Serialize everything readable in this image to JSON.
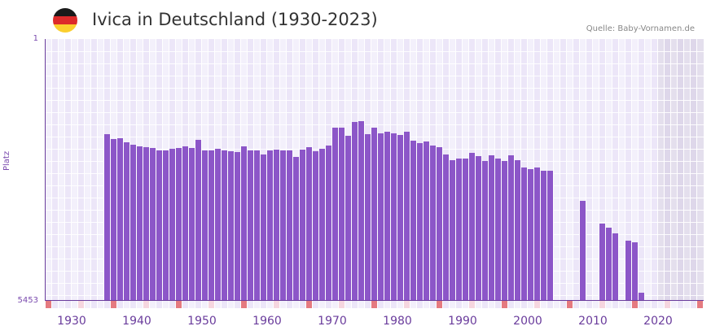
{
  "header": {
    "title": "Ivica in Deutschland (1930-2023)",
    "source": "Quelle: Baby-Vornamen.de",
    "flag_colors": [
      "#1a1a1a",
      "#dd2a2a",
      "#fbcf2e"
    ]
  },
  "axes": {
    "y_label": "Platz",
    "y_top_tick": "1",
    "y_bottom_tick": "5453",
    "x_ticks": [
      "1930",
      "1940",
      "1950",
      "1960",
      "1970",
      "1980",
      "1990",
      "2000",
      "2010",
      "2020"
    ]
  },
  "colors": {
    "bar": "#8c56c8",
    "axis": "#6a3c9c",
    "plot_bg": "#f1edfa",
    "decade_marker": "#e57a80",
    "half_decade_marker": "#f6d6df"
  },
  "chart_data": {
    "type": "bar",
    "title": "Ivica in Deutschland (1930-2023)",
    "xlabel": "",
    "ylabel": "Platz",
    "y_inverted": true,
    "ylim": [
      1,
      5453
    ],
    "xlim": [
      1928,
      2028
    ],
    "grid": true,
    "legend": null,
    "x": [
      1937,
      1938,
      1939,
      1940,
      1941,
      1942,
      1943,
      1944,
      1945,
      1946,
      1947,
      1948,
      1949,
      1950,
      1951,
      1952,
      1953,
      1954,
      1955,
      1956,
      1957,
      1958,
      1959,
      1960,
      1961,
      1962,
      1963,
      1964,
      1965,
      1966,
      1967,
      1968,
      1969,
      1970,
      1971,
      1972,
      1973,
      1974,
      1975,
      1976,
      1977,
      1978,
      1979,
      1980,
      1981,
      1982,
      1983,
      1984,
      1985,
      1986,
      1987,
      1988,
      1989,
      1990,
      1991,
      1992,
      1993,
      1994,
      1995,
      1996,
      1997,
      1998,
      1999,
      2000,
      2001,
      2002,
      2003,
      2004,
      2005,
      2010,
      2013,
      2014,
      2015,
      2017,
      2018,
      2019
    ],
    "values": [
      1982,
      2084,
      2067,
      2152,
      2202,
      2236,
      2253,
      2270,
      2321,
      2321,
      2287,
      2270,
      2236,
      2270,
      2101,
      2321,
      2321,
      2287,
      2321,
      2338,
      2355,
      2236,
      2321,
      2321,
      2406,
      2321,
      2304,
      2321,
      2321,
      2457,
      2304,
      2253,
      2338,
      2287,
      2219,
      1847,
      1847,
      2016,
      1727,
      1711,
      1982,
      1847,
      1965,
      1931,
      1965,
      1999,
      1931,
      2118,
      2169,
      2135,
      2219,
      2253,
      2406,
      2524,
      2491,
      2491,
      2372,
      2440,
      2541,
      2423,
      2491,
      2541,
      2423,
      2524,
      2677,
      2710,
      2677,
      2745,
      2745,
      3371,
      3845,
      3930,
      4048,
      4200,
      4234,
      5284
    ]
  }
}
